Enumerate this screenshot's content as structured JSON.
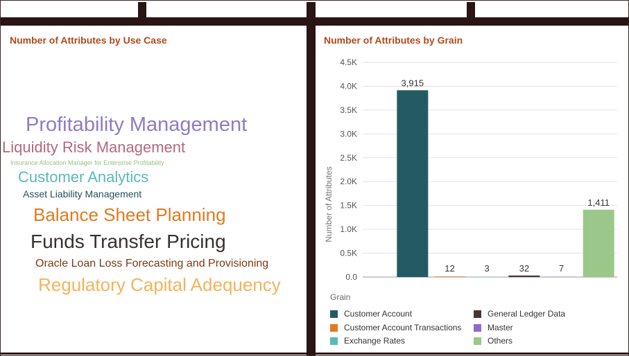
{
  "left_panel": {
    "title": "Number of Attributes by Use Case",
    "word_cloud": [
      {
        "text": "Profitability Management",
        "color": "#8e7cc3"
      },
      {
        "text": "Liquidity Risk Management",
        "color": "#b5677e"
      },
      {
        "text": "Insurance Allocation Manager for Enterprise Profitability",
        "color": "#93c47d"
      },
      {
        "text": "Customer Analytics",
        "color": "#5bb8b8"
      },
      {
        "text": "Asset Liability Management",
        "color": "#24505c"
      },
      {
        "text": "Balance Sheet Planning",
        "color": "#e07b1f"
      },
      {
        "text": "Funds Transfer Pricing",
        "color": "#3a2f2f"
      },
      {
        "text": "Oracle Loan Loss Forecasting and Provisioning",
        "color": "#7b3a10"
      },
      {
        "text": "Regulatory Capital Adequency",
        "color": "#f4b35c"
      }
    ]
  },
  "right_panel": {
    "title": "Number of Attributes by Grain",
    "legend_title": "Grain"
  },
  "chart_data": {
    "type": "bar",
    "title": "Number of Attributes by Grain",
    "xlabel": "Grain",
    "ylabel": "Number of Attributes",
    "ylim": [
      0,
      4500
    ],
    "y_ticks": [
      "0.0",
      "0.5K",
      "1.0K",
      "1.5K",
      "2.0K",
      "2.5K",
      "3.0K",
      "3.5K",
      "4.0K",
      "4.5K"
    ],
    "categories": [
      "Customer Account",
      "Customer Account Transactions",
      "Exchange Rates",
      "General Ledger Data",
      "Master",
      "Others"
    ],
    "values": [
      3915,
      12,
      3,
      32,
      7,
      1411
    ],
    "data_labels": [
      "3,915",
      "12",
      "3",
      "32",
      "7",
      "1,411"
    ],
    "colors": [
      "#245b63",
      "#e07b1f",
      "#5bb8b8",
      "#4a3535",
      "#8e6cc8",
      "#9bc78a"
    ],
    "grid": true,
    "legend_position": "bottom"
  }
}
